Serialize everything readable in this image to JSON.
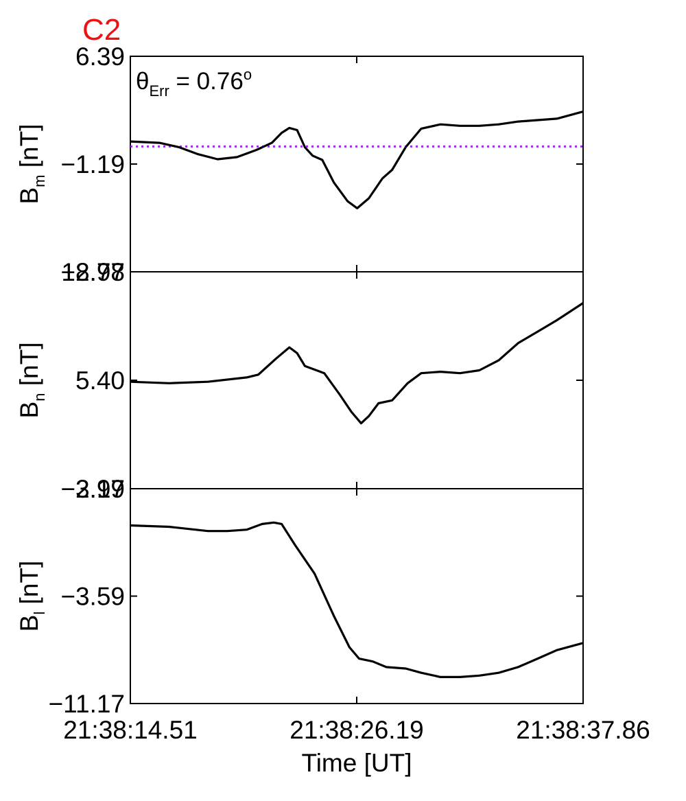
{
  "colors": {
    "title": "#ee1111",
    "line": "#000000",
    "reference": "#9b30e0",
    "axes": "#000000"
  },
  "chart_data": {
    "type": "line",
    "title": "C2",
    "annotation": {
      "symbol": "θ",
      "subscript": "Err",
      "text": " =  0.76",
      "superscript": "o"
    },
    "x": {
      "label": "Time [UT]",
      "ticks": [
        "21:38:14.51",
        "21:38:26.19",
        "21:38:37.86"
      ],
      "range_seconds": [
        0,
        23.35
      ]
    },
    "panels": [
      {
        "id": "bm",
        "ylabel": {
          "main": "B",
          "sub": "m",
          "unit": " [nT]"
        },
        "ylim": [
          -8.77,
          6.39
        ],
        "yticks": [
          "6.39",
          "−1.19",
          "−8.77"
        ],
        "reference_line": 0.05,
        "series": [
          [
            0.0,
            0.4
          ],
          [
            1.5,
            0.3
          ],
          [
            2.5,
            0.0
          ],
          [
            3.5,
            -0.5
          ],
          [
            4.5,
            -0.85
          ],
          [
            5.5,
            -0.7
          ],
          [
            6.5,
            -0.2
          ],
          [
            7.3,
            0.3
          ],
          [
            7.8,
            1.0
          ],
          [
            8.2,
            1.35
          ],
          [
            8.6,
            1.2
          ],
          [
            9.0,
            0.0
          ],
          [
            9.4,
            -0.6
          ],
          [
            9.9,
            -0.9
          ],
          [
            10.5,
            -2.5
          ],
          [
            11.2,
            -3.8
          ],
          [
            11.7,
            -4.3
          ],
          [
            12.3,
            -3.6
          ],
          [
            13.0,
            -2.2
          ],
          [
            13.5,
            -1.6
          ],
          [
            14.2,
            0.0
          ],
          [
            15.0,
            1.3
          ],
          [
            16.0,
            1.6
          ],
          [
            17.0,
            1.5
          ],
          [
            18.0,
            1.5
          ],
          [
            19.0,
            1.6
          ],
          [
            20.0,
            1.8
          ],
          [
            21.0,
            1.9
          ],
          [
            22.0,
            2.0
          ],
          [
            23.35,
            2.5
          ]
        ]
      },
      {
        "id": "bn",
        "ylabel": {
          "main": "B",
          "sub": "n",
          "unit": " [nT]"
        },
        "ylim": [
          -2.17,
          12.98
        ],
        "yticks": [
          "12.98",
          "5.40",
          "−2.17"
        ],
        "series": [
          [
            0.0,
            5.3
          ],
          [
            2.0,
            5.2
          ],
          [
            4.0,
            5.3
          ],
          [
            6.0,
            5.6
          ],
          [
            6.6,
            5.8
          ],
          [
            7.5,
            6.9
          ],
          [
            8.2,
            7.7
          ],
          [
            8.6,
            7.3
          ],
          [
            9.0,
            6.4
          ],
          [
            9.6,
            6.1
          ],
          [
            10.0,
            5.9
          ],
          [
            10.8,
            4.4
          ],
          [
            11.4,
            3.2
          ],
          [
            11.9,
            2.4
          ],
          [
            12.3,
            2.9
          ],
          [
            12.8,
            3.8
          ],
          [
            13.5,
            4.0
          ],
          [
            14.3,
            5.2
          ],
          [
            15.0,
            5.9
          ],
          [
            16.0,
            6.0
          ],
          [
            17.0,
            5.9
          ],
          [
            18.0,
            6.1
          ],
          [
            19.0,
            6.8
          ],
          [
            20.0,
            8.0
          ],
          [
            21.0,
            8.8
          ],
          [
            22.0,
            9.6
          ],
          [
            23.35,
            10.8
          ]
        ]
      },
      {
        "id": "bl",
        "ylabel": {
          "main": "B",
          "sub": "l",
          "unit": " [nT]"
        },
        "ylim": [
          -11.17,
          3.99
        ],
        "yticks": [
          "3.99",
          "−3.59",
          "−11.17"
        ],
        "series": [
          [
            0.0,
            1.4
          ],
          [
            2.0,
            1.3
          ],
          [
            4.0,
            1.0
          ],
          [
            5.0,
            1.0
          ],
          [
            6.0,
            1.1
          ],
          [
            6.8,
            1.5
          ],
          [
            7.4,
            1.6
          ],
          [
            7.8,
            1.5
          ],
          [
            8.5,
            0.0
          ],
          [
            9.5,
            -2.0
          ],
          [
            10.5,
            -5.0
          ],
          [
            11.3,
            -7.2
          ],
          [
            11.8,
            -8.0
          ],
          [
            12.5,
            -8.2
          ],
          [
            13.2,
            -8.6
          ],
          [
            14.2,
            -8.7
          ],
          [
            15.0,
            -9.0
          ],
          [
            16.0,
            -9.3
          ],
          [
            17.0,
            -9.3
          ],
          [
            18.0,
            -9.2
          ],
          [
            19.0,
            -9.0
          ],
          [
            20.0,
            -8.6
          ],
          [
            21.0,
            -8.0
          ],
          [
            22.0,
            -7.4
          ],
          [
            23.35,
            -6.9
          ]
        ]
      }
    ]
  }
}
